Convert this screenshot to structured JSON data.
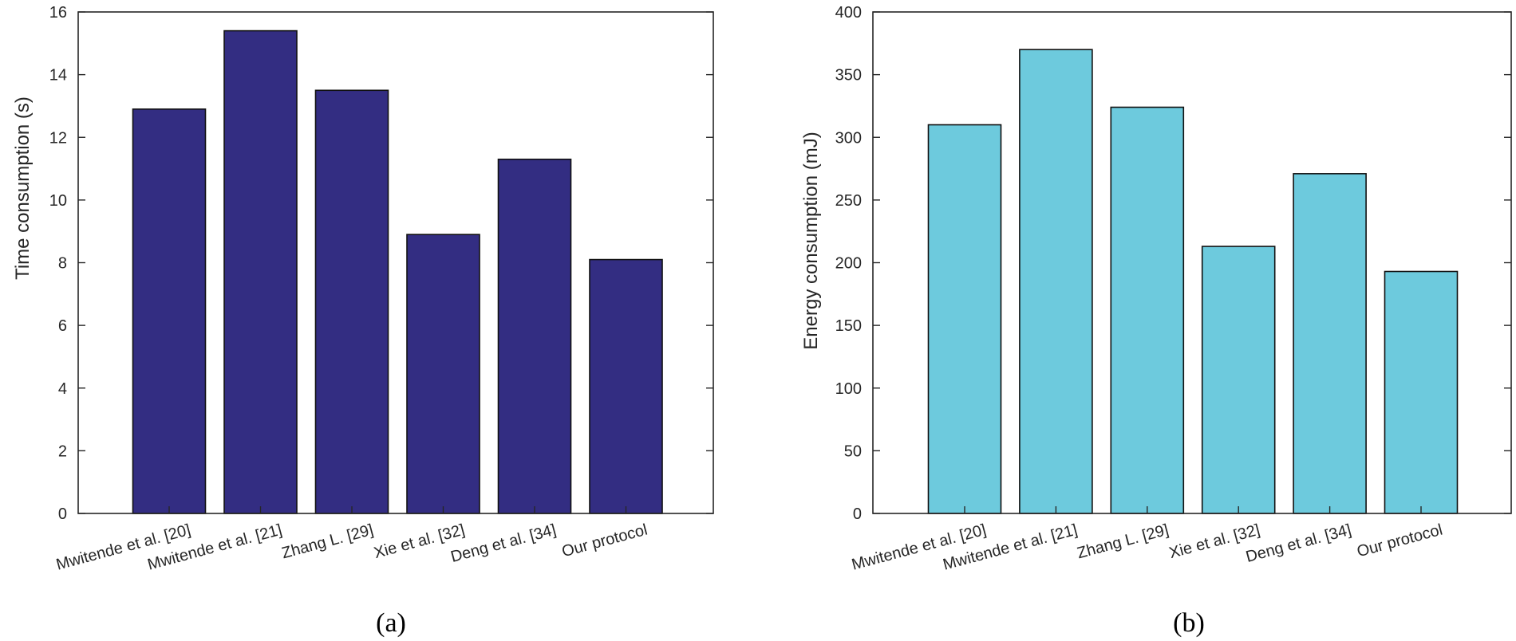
{
  "chart_data": [
    {
      "type": "bar",
      "panel_label": "(a)",
      "categories": [
        "Mwitende et al. [20]",
        "Mwitende et al. [21]",
        "Zhang L. [29]",
        "Xie et al. [32]",
        "Deng et al. [34]",
        "Our protocol"
      ],
      "values": [
        12.9,
        15.4,
        13.5,
        8.9,
        11.3,
        8.1
      ],
      "ylabel": "Time consumption (s)",
      "xlabel": "",
      "ylim": [
        0,
        16
      ],
      "yticks": [
        "0",
        "2",
        "4",
        "6",
        "8",
        "10",
        "12",
        "14",
        "16"
      ],
      "bar_color": "#332d82",
      "grid": false,
      "legend": "none"
    },
    {
      "type": "bar",
      "panel_label": "(b)",
      "categories": [
        "Mwitende et al. [20]",
        "Mwitende et al. [21]",
        "Zhang L. [29]",
        "Xie et al. [32]",
        "Deng et al. [34]",
        "Our protocol"
      ],
      "values": [
        310,
        370,
        324,
        213,
        271,
        193
      ],
      "ylabel": "Energy consumption (mJ)",
      "xlabel": "",
      "ylim": [
        0,
        400
      ],
      "yticks": [
        "0",
        "50",
        "100",
        "150",
        "200",
        "250",
        "300",
        "350",
        "400"
      ],
      "bar_color": "#6dcadd",
      "grid": false,
      "legend": "none"
    }
  ]
}
